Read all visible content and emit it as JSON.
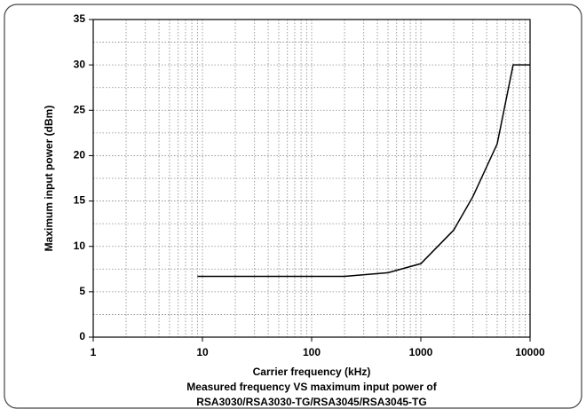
{
  "chart_data": {
    "type": "line",
    "xlabel": "Carrier frequency (kHz)",
    "ylabel": "Maximum input power (dBm)",
    "caption": [
      "Measured frequency VS maximum input power of",
      "RSA3030/RSA3030-TG/RSA3045/RSA3045-TG"
    ],
    "x": [
      9,
      200,
      500,
      1000,
      2000,
      3000,
      5000,
      7000,
      10000
    ],
    "series": [
      {
        "color": "#000000",
        "values": [
          6.7,
          6.7,
          7.1,
          8.1,
          11.8,
          15.5,
          21.3,
          30,
          30
        ]
      }
    ],
    "xscale": "log",
    "xlim": [
      1,
      10000
    ],
    "xticks": [
      1,
      10,
      100,
      1000,
      10000
    ],
    "xminor": [
      2,
      3,
      4,
      5,
      6,
      7,
      8,
      9,
      20,
      30,
      40,
      50,
      60,
      70,
      80,
      90,
      200,
      300,
      400,
      500,
      600,
      700,
      800,
      900,
      2000,
      3000,
      4000,
      5000,
      6000,
      7000,
      8000,
      9000
    ],
    "ylim": [
      0,
      35
    ],
    "yticks": [
      0,
      5,
      10,
      15,
      20,
      25,
      30,
      35
    ],
    "yminor": [
      2.5,
      7.5,
      12.5,
      17.5,
      22.5,
      27.5,
      32.5
    ],
    "grid": true
  }
}
